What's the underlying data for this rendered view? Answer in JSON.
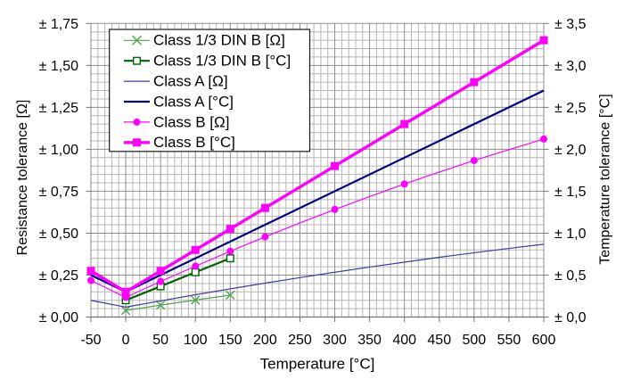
{
  "chart_data": {
    "type": "line",
    "title": "",
    "xlabel": "Temperature [°C]",
    "ylabel_left": "Resistance tolerance [Ω]",
    "ylabel_right": "Temperature tolerance [°C]",
    "x_axis": {
      "min": -50,
      "max": 600,
      "major_step": 50,
      "minor_step": 10,
      "tick_labels": [
        "-50",
        "0",
        "50",
        "100",
        "150",
        "200",
        "250",
        "300",
        "350",
        "400",
        "450",
        "500",
        "550",
        "600"
      ]
    },
    "y_axis_left": {
      "min": 0,
      "max": 1.75,
      "major_step": 0.25,
      "minor_step": 0.05,
      "tick_labels": [
        "± 0,00",
        "± 0,25",
        "± 0,50",
        "± 0,75",
        "± 1,00",
        "± 1,25",
        "± 1,50",
        "± 1,75"
      ]
    },
    "y_axis_right": {
      "min": 0,
      "max": 3.5,
      "major_step": 0.5,
      "tick_labels": [
        "± 0,0",
        "± 0,5",
        "± 1,0",
        "± 1,5",
        "± 2,0",
        "± 2,5",
        "± 3,0",
        "± 3,5"
      ]
    },
    "grid": {
      "minor": true,
      "major": true
    },
    "legend_position": "top-left-inside",
    "series": [
      {
        "name": "Class 1/3 DIN B [Ω]",
        "id": "class-13dinb-ohm",
        "axis": "left",
        "color": "#4ea64e",
        "line_width": 1.2,
        "marker": "x",
        "x": [
          0,
          50,
          100,
          150
        ],
        "values": [
          0.039,
          0.071,
          0.101,
          0.131
        ],
        "marker_x": [
          0,
          50,
          100,
          150
        ]
      },
      {
        "name": "Class 1/3 DIN B [°C]",
        "id": "class-13dinb-degc",
        "axis": "left",
        "color": "#006400",
        "line_width": 2.2,
        "marker": "square-open",
        "x": [
          0,
          50,
          100,
          150
        ],
        "values": [
          0.1,
          0.183,
          0.267,
          0.35
        ],
        "marker_x": [
          0,
          50,
          100,
          150
        ]
      },
      {
        "name": "Class A [Ω]",
        "id": "class-a-ohm",
        "axis": "left",
        "color": "#3c3c9e",
        "line_width": 1.2,
        "marker": "none",
        "x": [
          -50,
          0,
          50,
          100,
          150,
          200,
          250,
          300,
          350,
          400,
          450,
          500,
          550,
          600
        ],
        "values": [
          0.099,
          0.059,
          0.096,
          0.133,
          0.168,
          0.202,
          0.235,
          0.267,
          0.298,
          0.327,
          0.356,
          0.383,
          0.409,
          0.434
        ],
        "marker_x": []
      },
      {
        "name": "Class A [°C]",
        "id": "class-a-degc",
        "axis": "left",
        "color": "#000082",
        "line_width": 2.2,
        "marker": "none",
        "x": [
          -50,
          0,
          600
        ],
        "values": [
          0.25,
          0.15,
          1.35
        ],
        "marker_x": []
      },
      {
        "name": "Class B [Ω]",
        "id": "class-b-ohm",
        "axis": "left",
        "color": "#ff00ff",
        "line_width": 1.2,
        "marker": "circle",
        "x": [
          -50,
          0,
          50,
          100,
          150,
          200,
          250,
          300,
          350,
          400,
          450,
          500,
          550,
          600
        ],
        "values": [
          0.218,
          0.117,
          0.212,
          0.303,
          0.392,
          0.478,
          0.561,
          0.641,
          0.718,
          0.793,
          0.864,
          0.933,
          0.998,
          1.061
        ],
        "marker_x": [
          -50,
          0,
          50,
          100,
          150,
          200,
          300,
          400,
          500,
          600
        ]
      },
      {
        "name": "Class B [°C]",
        "id": "class-b-degc",
        "axis": "right",
        "color": "#ff00ff",
        "line_width": 3.4,
        "marker": "square",
        "x": [
          -50,
          0,
          600
        ],
        "values": [
          0.55,
          0.3,
          3.3
        ],
        "marker_x": [
          -50,
          0,
          50,
          100,
          150,
          200,
          300,
          400,
          500,
          600
        ],
        "marker_values": [
          0.55,
          0.3,
          0.55,
          0.8,
          1.05,
          1.3,
          1.8,
          2.3,
          2.8,
          3.3
        ]
      }
    ]
  }
}
